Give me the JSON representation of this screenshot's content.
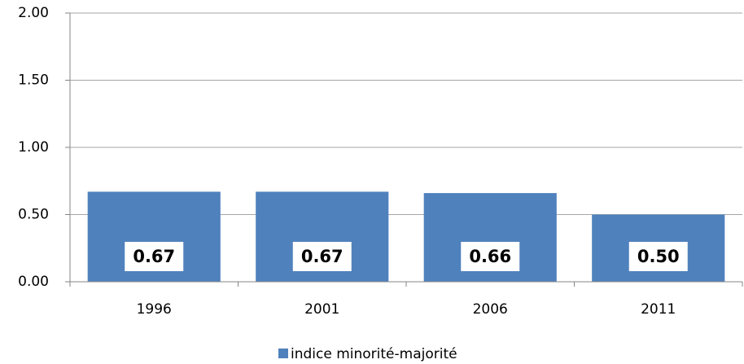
{
  "chart_data": {
    "type": "bar",
    "categories": [
      "1996",
      "2001",
      "2006",
      "2011"
    ],
    "series": [
      {
        "name": "indice minorité-majorité",
        "color": "#4f81bd",
        "values": [
          0.67,
          0.67,
          0.66,
          0.5
        ],
        "value_labels": [
          "0.67",
          "0.67",
          "0.66",
          "0.50"
        ]
      }
    ],
    "ylim": [
      0,
      2
    ],
    "yticks": [
      {
        "value": 0,
        "label": "0.00"
      },
      {
        "value": 0.5,
        "label": "0.50"
      },
      {
        "value": 1,
        "label": "1.00"
      },
      {
        "value": 1.5,
        "label": "1.50"
      },
      {
        "value": 2,
        "label": "2.00"
      }
    ],
    "grid": true,
    "legend": "bottom"
  }
}
